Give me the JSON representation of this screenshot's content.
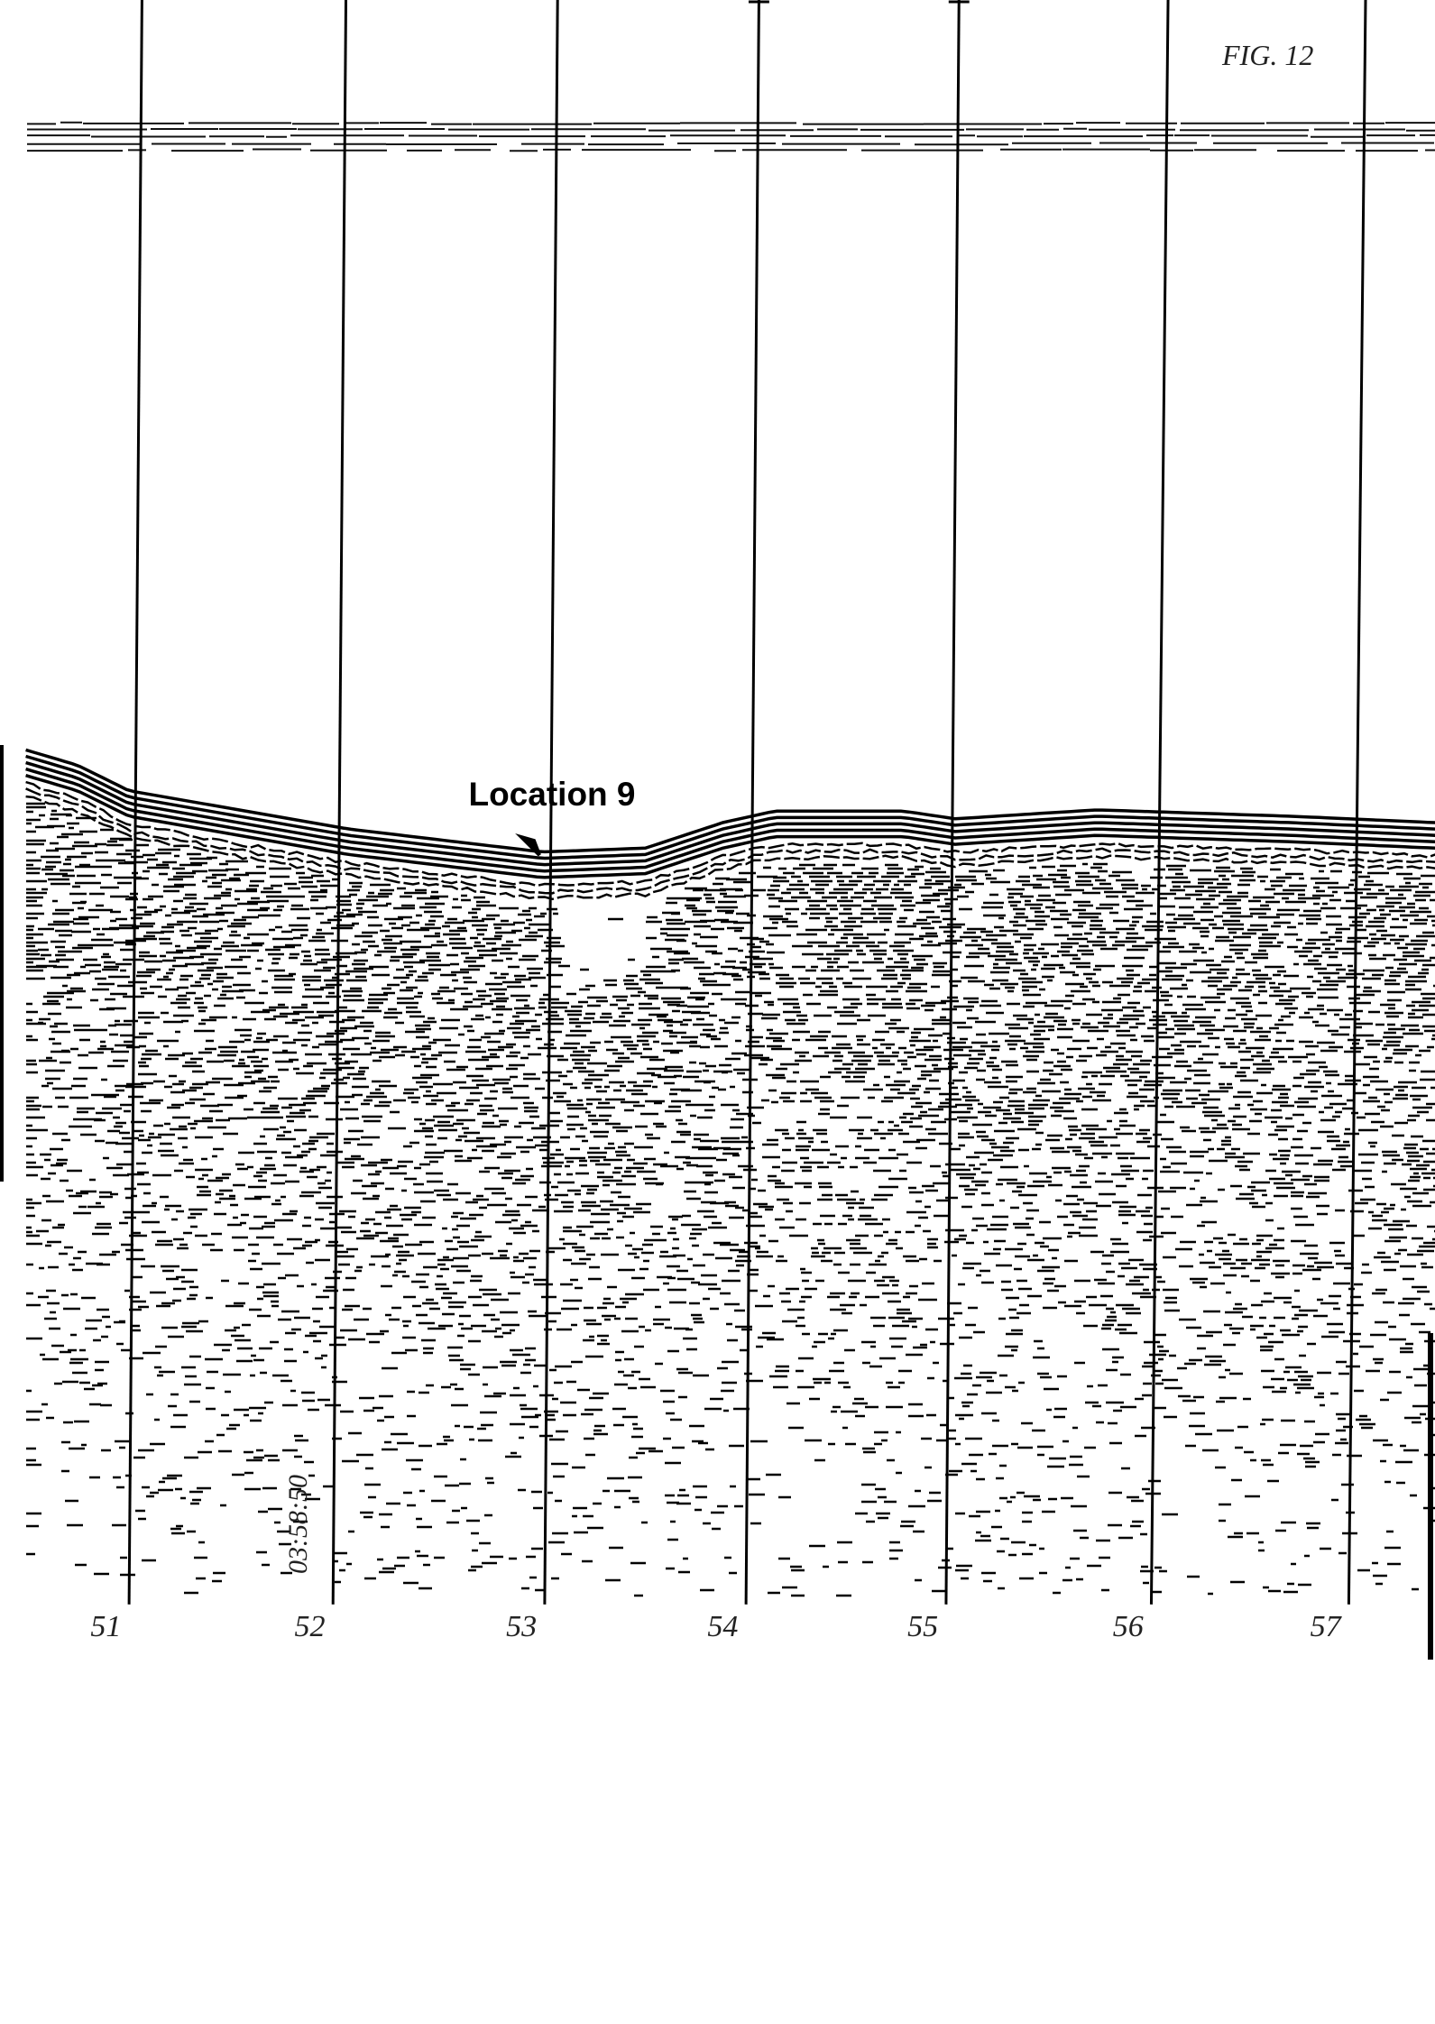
{
  "figure_label": "FIG. 12",
  "annotation": "Location 9",
  "timestamp": "03:58:50",
  "trace_labels": [
    "51",
    "52",
    "53",
    "54",
    "55",
    "56",
    "57"
  ]
}
